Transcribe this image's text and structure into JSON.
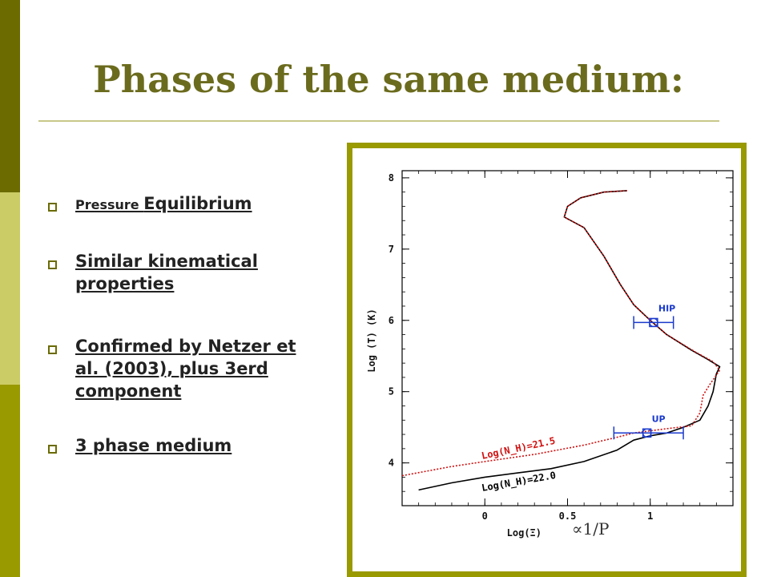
{
  "slide": {
    "title": "Phases of the same medium:",
    "bullets": [
      {
        "small": "Pressure ",
        "big": "Equilibrium"
      },
      {
        "text": "Similar kinematical properties"
      },
      {
        "text": "Confirmed by Netzer et al. (2003), plus 3erd component"
      },
      {
        "text": "3 phase medium"
      }
    ],
    "colors": {
      "bar_dark": "#6b6b00",
      "bar_light": "#cccc66",
      "bar_mid": "#999900",
      "title": "#6b6b1e",
      "frame": "#999900"
    }
  },
  "chart_data": {
    "type": "line",
    "xlabel": "Log(Ξ)",
    "ylabel": "Log (T) (K)",
    "x_annotation": "∝1/P",
    "xlim": [
      -0.5,
      1.5
    ],
    "ylim": [
      3.4,
      8.1
    ],
    "xticks": [
      0,
      0.5,
      1
    ],
    "xtick_labels": [
      "0",
      "0.5",
      "1"
    ],
    "yticks": [
      4,
      5,
      6,
      7,
      8
    ],
    "ytick_labels": [
      "4",
      "5",
      "6",
      "7",
      "8"
    ],
    "series": [
      {
        "name": "Log(N_H)=22.0",
        "color": "#000000",
        "style": "solid",
        "points": [
          [
            -0.4,
            3.62
          ],
          [
            -0.2,
            3.72
          ],
          [
            0,
            3.8
          ],
          [
            0.2,
            3.86
          ],
          [
            0.4,
            3.92
          ],
          [
            0.6,
            4.02
          ],
          [
            0.8,
            4.18
          ],
          [
            0.9,
            4.32
          ],
          [
            1.0,
            4.38
          ],
          [
            1.1,
            4.42
          ],
          [
            1.2,
            4.5
          ],
          [
            1.3,
            4.6
          ],
          [
            1.35,
            4.8
          ],
          [
            1.38,
            5.0
          ],
          [
            1.4,
            5.25
          ],
          [
            1.42,
            5.35
          ],
          [
            1.35,
            5.45
          ],
          [
            1.25,
            5.58
          ],
          [
            1.1,
            5.8
          ],
          [
            1.0,
            6.0
          ],
          [
            0.9,
            6.22
          ],
          [
            0.82,
            6.5
          ],
          [
            0.72,
            6.9
          ],
          [
            0.6,
            7.3
          ],
          [
            0.48,
            7.45
          ],
          [
            0.5,
            7.6
          ],
          [
            0.58,
            7.72
          ],
          [
            0.72,
            7.8
          ],
          [
            0.86,
            7.82
          ]
        ]
      },
      {
        "name": "Log(N_H)=21.5",
        "color": "#d01010",
        "style": "dotted",
        "points": [
          [
            -0.5,
            3.82
          ],
          [
            -0.2,
            3.95
          ],
          [
            0,
            4.02
          ],
          [
            0.3,
            4.12
          ],
          [
            0.6,
            4.25
          ],
          [
            0.8,
            4.36
          ],
          [
            0.9,
            4.42
          ],
          [
            1.1,
            4.48
          ],
          [
            1.25,
            4.52
          ],
          [
            1.3,
            4.7
          ],
          [
            1.32,
            4.95
          ],
          [
            1.36,
            5.1
          ],
          [
            1.42,
            5.3
          ],
          [
            1.38,
            5.42
          ],
          [
            1.27,
            5.56
          ],
          [
            1.1,
            5.8
          ],
          [
            1.0,
            6.0
          ],
          [
            0.9,
            6.22
          ],
          [
            0.82,
            6.5
          ],
          [
            0.72,
            6.9
          ],
          [
            0.6,
            7.3
          ],
          [
            0.48,
            7.45
          ],
          [
            0.5,
            7.6
          ],
          [
            0.58,
            7.72
          ],
          [
            0.72,
            7.8
          ],
          [
            0.86,
            7.82
          ]
        ]
      }
    ],
    "annotations": [
      {
        "label": "Log(N_H)=21.5",
        "color": "#d01010"
      },
      {
        "label": "Log(N_H)=22.0",
        "color": "#000000"
      },
      {
        "label": "HIP",
        "color": "#1a3acc",
        "x": 1.02,
        "y": 5.97,
        "xerr": [
          0.9,
          1.14
        ]
      },
      {
        "label": "UP",
        "color": "#1a3acc",
        "x": 0.98,
        "y": 4.42,
        "xerr": [
          0.78,
          1.2
        ]
      }
    ]
  }
}
